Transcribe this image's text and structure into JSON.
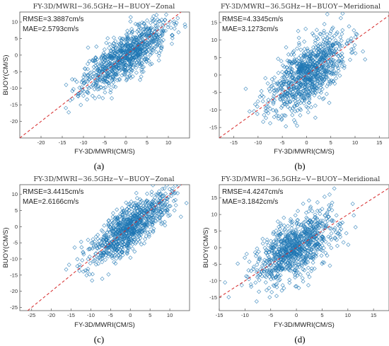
{
  "chart_data": [
    {
      "id": "a",
      "type": "scatter",
      "title": "FY-3D/MWRI−36.5GHz−H−BUOY−Zonal",
      "stats": [
        "RMSE=3.3887cm/s",
        "MAE=2.5793cm/s"
      ],
      "xlabel": "FY-3D/MWRI(CM/S)",
      "ylabel": "BUOY(CM/S)",
      "xlim": [
        -25,
        15
      ],
      "ylim": [
        -25,
        13
      ],
      "xticks": [
        -20,
        -15,
        -10,
        -5,
        0,
        5,
        10
      ],
      "yticks": [
        -20,
        -15,
        -10,
        -5,
        0,
        5,
        10
      ],
      "reference_line": "y = x",
      "caption": "(a)",
      "sample": {
        "n": 900,
        "x_mean": 0,
        "x_sd": 5,
        "noise_sd": 3.3887,
        "seed": 11
      }
    },
    {
      "id": "b",
      "type": "scatter",
      "title": "FY-3D/MWRI−36.5GHz−H−BUOY−Meridional",
      "stats": [
        "RMSE=4.3345cm/s",
        "MAE=3.1273cm/s"
      ],
      "xlabel": "FY-3D/MWRI(CM/S)",
      "ylabel": "",
      "xlim": [
        -18,
        17
      ],
      "ylim": [
        -18,
        18
      ],
      "xticks": [
        -15,
        -10,
        -5,
        0,
        5,
        10,
        15
      ],
      "yticks": [
        -15,
        -10,
        -5,
        0,
        5,
        10,
        15
      ],
      "reference_line": "y = x",
      "caption": "(b)",
      "sample": {
        "n": 900,
        "x_mean": 0,
        "x_sd": 4,
        "noise_sd": 4.3345,
        "seed": 23
      }
    },
    {
      "id": "c",
      "type": "scatter",
      "title": "FY-3D/MWRI−36.5GHz−V−BUOY−Zonal",
      "stats": [
        "RMSE=3.4415cm/s",
        "MAE=2.6166cm/s"
      ],
      "xlabel": "FY-3D/MWRI(CM/S)",
      "ylabel": "BUOY(CM/S)",
      "xlim": [
        -28,
        15
      ],
      "ylim": [
        -26,
        13
      ],
      "xticks": [
        -25,
        -20,
        -15,
        -10,
        -5,
        0,
        5,
        10
      ],
      "yticks": [
        -25,
        -20,
        -15,
        -10,
        -5,
        0,
        5,
        10
      ],
      "reference_line": "y = x",
      "caption": "(c)",
      "sample": {
        "n": 900,
        "x_mean": 0,
        "x_sd": 5,
        "noise_sd": 3.4415,
        "seed": 37
      }
    },
    {
      "id": "d",
      "type": "scatter",
      "title": "FY-3D/MWRI−36.5GHz−V−BUOY−Meridional",
      "stats": [
        "RMSE=4.4247cm/s",
        "MAE=3.1842cm/s"
      ],
      "xlabel": "FY-3D/MWRI(CM/S)",
      "ylabel": "BUOY(CM/S)",
      "xlim": [
        -15,
        18
      ],
      "ylim": [
        -19,
        19
      ],
      "xticks": [
        -15,
        -10,
        -5,
        0,
        5,
        10,
        15
      ],
      "yticks": [
        -15,
        -10,
        -5,
        0,
        5,
        10,
        15
      ],
      "reference_line": "y = x",
      "caption": "(d)",
      "sample": {
        "n": 900,
        "x_mean": 0,
        "x_sd": 4,
        "noise_sd": 4.4247,
        "seed": 53
      }
    }
  ],
  "colors": {
    "markers": "#1f77b4",
    "reference_line": "#d62728",
    "axes": "#555555"
  }
}
